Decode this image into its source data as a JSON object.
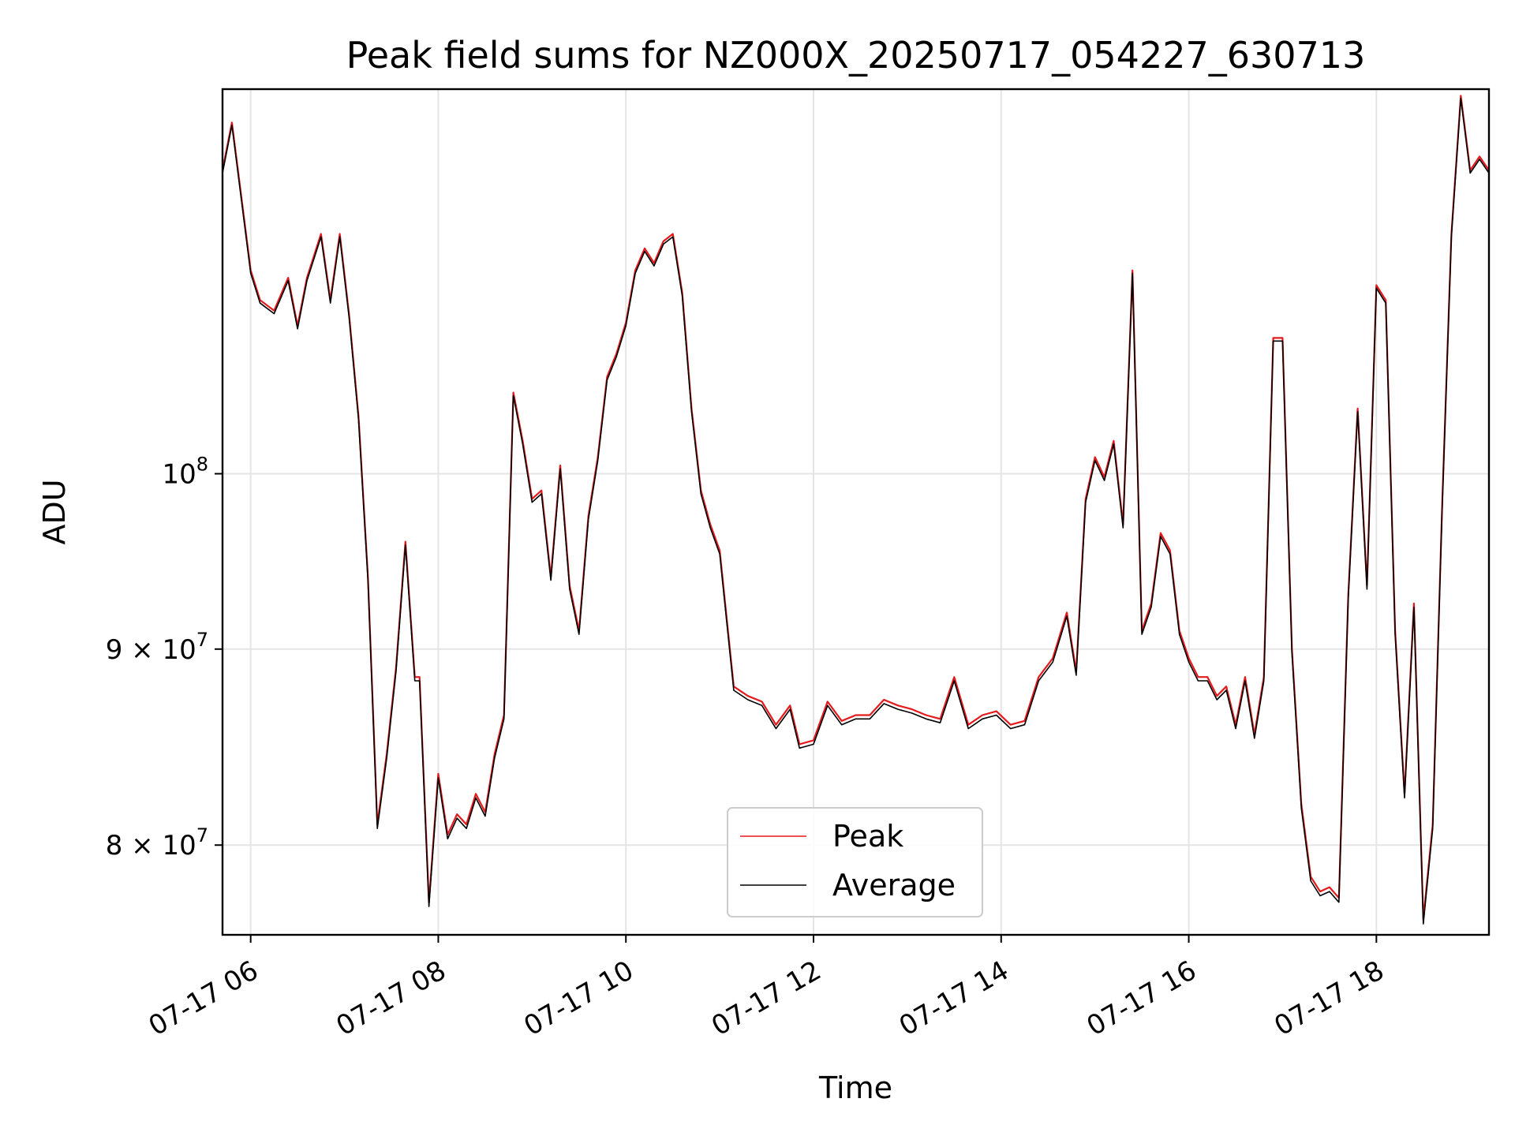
{
  "chart_data": {
    "type": "line",
    "title": "Peak field sums for NZ000X_20250717_054227_630713",
    "xlabel": "Time",
    "ylabel": "ADU",
    "yscale": "log",
    "grid": true,
    "legend_position": "lower-center",
    "x_ticks": [
      "07-17 06",
      "07-17 08",
      "07-17 10",
      "07-17 12",
      "07-17 14",
      "07-17 16",
      "07-17 18"
    ],
    "y_ticks": [
      {
        "value": 80000000,
        "mantissa": "8",
        "base": "10",
        "exp": "7"
      },
      {
        "value": 90000000,
        "mantissa": "9",
        "base": "10",
        "exp": "7"
      },
      {
        "value": 100000000,
        "mantissa": "",
        "base": "10",
        "exp": "8"
      }
    ],
    "xlim": [
      "2025-07-17T05:42",
      "2025-07-17T19:12"
    ],
    "ylim": [
      75800000,
      126000000
    ],
    "x": [
      "05:42",
      "05:48",
      "06:00",
      "06:06",
      "06:15",
      "06:24",
      "06:30",
      "06:36",
      "06:45",
      "06:51",
      "06:57",
      "07:03",
      "07:09",
      "07:15",
      "07:21",
      "07:27",
      "07:33",
      "07:39",
      "07:45",
      "07:48",
      "07:54",
      "08:00",
      "08:06",
      "08:12",
      "08:18",
      "08:24",
      "08:30",
      "08:36",
      "08:42",
      "08:48",
      "08:54",
      "09:00",
      "09:06",
      "09:12",
      "09:18",
      "09:24",
      "09:30",
      "09:36",
      "09:42",
      "09:48",
      "09:54",
      "10:00",
      "10:06",
      "10:12",
      "10:18",
      "10:24",
      "10:30",
      "10:36",
      "10:42",
      "10:48",
      "10:54",
      "11:00",
      "11:09",
      "11:18",
      "11:27",
      "11:36",
      "11:45",
      "11:51",
      "12:00",
      "12:09",
      "12:18",
      "12:27",
      "12:36",
      "12:45",
      "12:54",
      "13:03",
      "13:12",
      "13:21",
      "13:30",
      "13:39",
      "13:48",
      "13:57",
      "14:06",
      "14:15",
      "14:24",
      "14:33",
      "14:42",
      "14:48",
      "14:54",
      "15:00",
      "15:06",
      "15:12",
      "15:18",
      "15:24",
      "15:30",
      "15:36",
      "15:42",
      "15:48",
      "15:54",
      "16:00",
      "16:06",
      "16:12",
      "16:18",
      "16:24",
      "16:30",
      "16:36",
      "16:42",
      "16:48",
      "16:54",
      "17:00",
      "17:06",
      "17:12",
      "17:18",
      "17:24",
      "17:30",
      "17:36",
      "17:42",
      "17:48",
      "17:54",
      "18:00",
      "18:06",
      "18:12",
      "18:18",
      "18:24",
      "18:30",
      "18:36",
      "18:42",
      "18:48",
      "18:54",
      "19:00",
      "19:06",
      "19:12"
    ],
    "series": [
      {
        "name": "Peak",
        "color": "#e41a1c",
        "values": [
          120000000,
          123500000,
          113000000,
          111000000,
          110300000,
          112500000,
          109300000,
          112500000,
          115500000,
          111000000,
          115500000,
          110000000,
          103500000,
          94000000,
          81000000,
          84500000,
          89000000,
          96000000,
          88500000,
          88500000,
          77300000,
          83500000,
          80500000,
          81500000,
          81000000,
          82500000,
          81600000,
          84500000,
          86500000,
          105000000,
          102000000,
          98500000,
          99000000,
          94000000,
          100500000,
          93500000,
          91000000,
          97500000,
          101000000,
          106000000,
          107500000,
          109500000,
          113000000,
          114500000,
          113500000,
          115000000,
          115500000,
          111500000,
          104000000,
          99000000,
          97000000,
          95500000,
          88000000,
          87500000,
          87200000,
          86000000,
          87000000,
          85000000,
          85200000,
          87200000,
          86200000,
          86500000,
          86500000,
          87300000,
          87000000,
          86800000,
          86500000,
          86300000,
          88500000,
          86000000,
          86500000,
          86700000,
          86000000,
          86200000,
          88500000,
          89500000,
          92000000,
          88800000,
          98500000,
          101000000,
          99800000,
          102000000,
          97000000,
          113000000,
          91000000,
          92500000,
          96500000,
          95500000,
          91000000,
          89500000,
          88500000,
          88500000,
          87500000,
          88000000,
          86000000,
          88500000,
          85500000,
          88500000,
          108500000,
          108500000,
          90000000,
          82000000,
          78500000,
          77800000,
          78000000,
          77500000,
          93000000,
          104000000,
          93500000,
          112000000,
          111000000,
          91000000,
          82500000,
          92500000,
          76500000,
          81000000,
          98000000,
          115500000,
          125500000,
          120000000,
          121000000,
          120000000
        ]
      },
      {
        "name": "Average",
        "color": "#000000",
        "values": [
          119800000,
          123300000,
          112800000,
          110800000,
          110100000,
          112300000,
          109100000,
          112300000,
          115300000,
          110800000,
          115300000,
          109800000,
          103300000,
          93800000,
          80800000,
          84300000,
          88800000,
          95800000,
          88300000,
          88300000,
          77100000,
          83300000,
          80300000,
          81300000,
          80800000,
          82300000,
          81400000,
          84300000,
          86300000,
          104800000,
          101800000,
          98300000,
          98800000,
          93800000,
          100300000,
          93300000,
          90800000,
          97300000,
          100800000,
          105800000,
          107300000,
          109300000,
          112800000,
          114300000,
          113300000,
          114800000,
          115300000,
          111300000,
          103800000,
          98800000,
          96800000,
          95300000,
          87800000,
          87300000,
          87000000,
          85800000,
          86800000,
          84800000,
          85000000,
          87000000,
          86000000,
          86300000,
          86300000,
          87100000,
          86800000,
          86600000,
          86300000,
          86100000,
          88300000,
          85800000,
          86300000,
          86500000,
          85800000,
          86000000,
          88300000,
          89300000,
          91800000,
          88600000,
          98300000,
          100800000,
          99600000,
          101800000,
          96800000,
          112800000,
          90800000,
          92300000,
          96300000,
          95300000,
          90800000,
          89300000,
          88300000,
          88300000,
          87300000,
          87800000,
          85800000,
          88300000,
          85300000,
          88300000,
          108300000,
          108300000,
          89800000,
          81800000,
          78300000,
          77600000,
          77800000,
          77300000,
          92800000,
          103800000,
          93300000,
          111800000,
          110800000,
          90800000,
          82300000,
          92300000,
          76300000,
          80800000,
          97800000,
          115300000,
          125300000,
          119800000,
          120800000,
          119800000
        ]
      }
    ]
  }
}
